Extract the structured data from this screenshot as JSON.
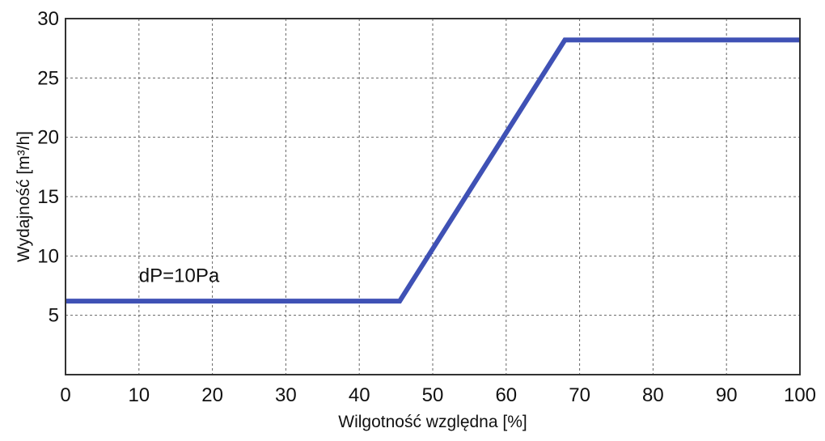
{
  "chart_data": {
    "type": "line",
    "title": "",
    "xlabel": "Wilgotność względna [%]",
    "ylabel": "Wydajność [m³/h]",
    "xlim": [
      0,
      100
    ],
    "ylim": [
      0,
      30
    ],
    "x_ticks": [
      0,
      10,
      20,
      30,
      40,
      50,
      60,
      70,
      80,
      90,
      100
    ],
    "y_ticks": [
      5,
      10,
      15,
      20,
      25,
      30
    ],
    "x_tick_labels": [
      "0",
      "10",
      "20",
      "30",
      "40",
      "50",
      "60",
      "70",
      "80",
      "90",
      "100"
    ],
    "y_tick_labels": [
      "5",
      "10",
      "15",
      "20",
      "25",
      "30"
    ],
    "grid": true,
    "series": [
      {
        "name": "",
        "color": "#3f51b5",
        "x": [
          0,
          45.5,
          68,
          100
        ],
        "y": [
          6.2,
          6.2,
          28.2,
          28.2
        ]
      }
    ],
    "annotations": [
      {
        "text": "dP=10Pa",
        "x": 10,
        "y": 7.8
      }
    ]
  }
}
